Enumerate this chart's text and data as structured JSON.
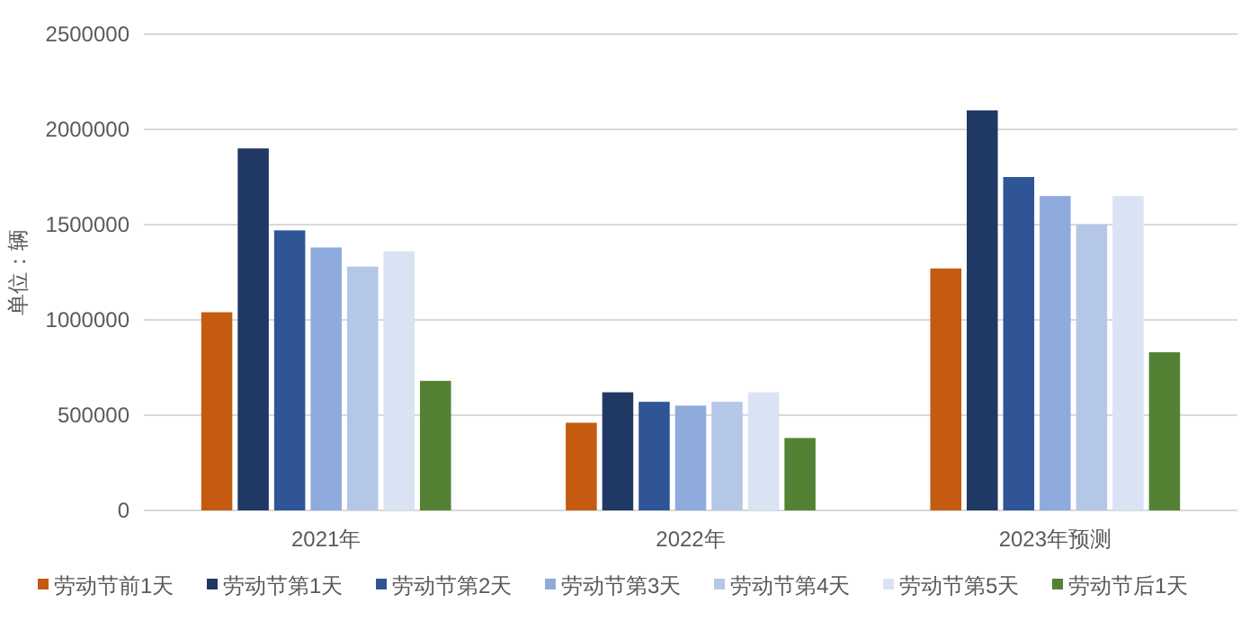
{
  "chart_data": {
    "type": "bar",
    "ylabel": "单位：辆",
    "categories": [
      "2021年",
      "2022年",
      "2023年预测"
    ],
    "ylim": [
      0,
      2500000
    ],
    "yticks": [
      0,
      500000,
      1000000,
      1500000,
      2000000,
      2500000
    ],
    "grid": "y",
    "legend": "bottom",
    "series": [
      {
        "name": "劳动节前1天",
        "color": "#c55a11",
        "values": [
          1040000,
          460000,
          1270000
        ]
      },
      {
        "name": "劳动节第1天",
        "color": "#203864",
        "values": [
          1900000,
          620000,
          2100000
        ]
      },
      {
        "name": "劳动节第2天",
        "color": "#2f5597",
        "values": [
          1470000,
          570000,
          1750000
        ]
      },
      {
        "name": "劳动节第3天",
        "color": "#8faadc",
        "values": [
          1380000,
          550000,
          1650000
        ]
      },
      {
        "name": "劳动节第4天",
        "color": "#b4c7e7",
        "values": [
          1280000,
          570000,
          1500000
        ]
      },
      {
        "name": "劳动节第5天",
        "color": "#dae3f3",
        "values": [
          1360000,
          620000,
          1650000
        ]
      },
      {
        "name": "劳动节后1天",
        "color": "#548235",
        "values": [
          680000,
          380000,
          830000
        ]
      }
    ]
  }
}
